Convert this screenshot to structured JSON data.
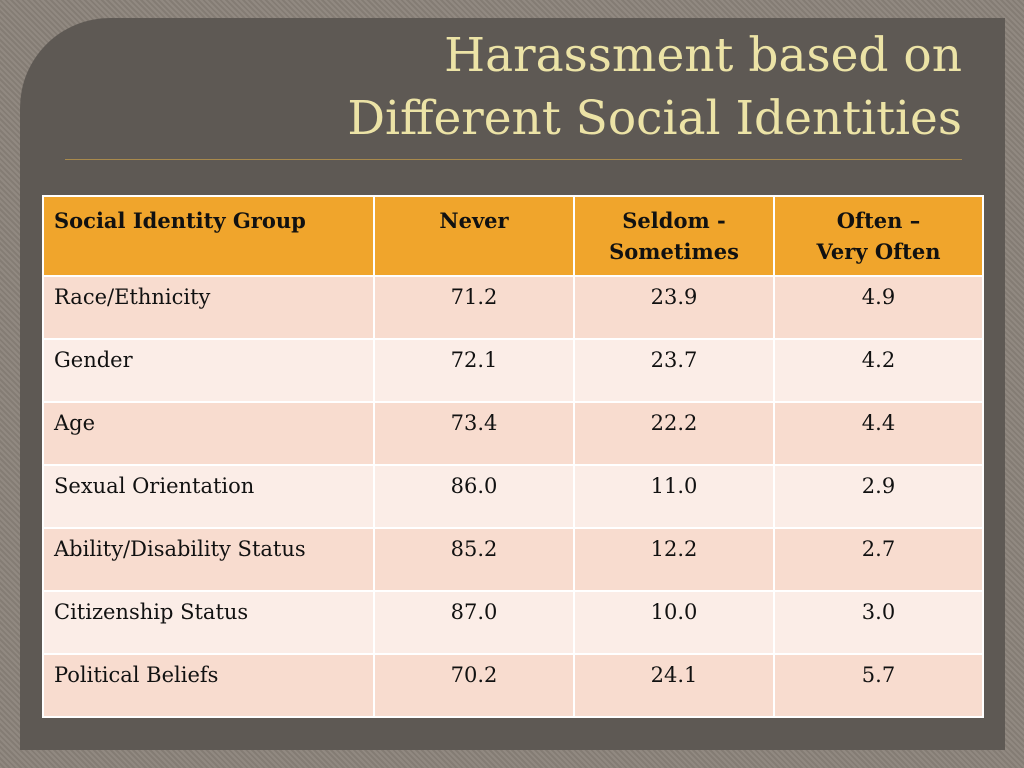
{
  "header": {
    "title_lines": [
      "Harassment based on",
      "Different Social Identities"
    ]
  },
  "table": {
    "columns": [
      [
        "Social Identity Group"
      ],
      [
        "Never"
      ],
      [
        "Seldom -",
        "Sometimes"
      ],
      [
        "Often –",
        "Very Often"
      ]
    ],
    "rows": [
      [
        "Race/Ethnicity",
        "71.2",
        "23.9",
        "4.9"
      ],
      [
        "Gender",
        "72.1",
        "23.7",
        "4.2"
      ],
      [
        "Age",
        "73.4",
        "22.2",
        "4.4"
      ],
      [
        "Sexual Orientation",
        "86.0",
        "11.0",
        "2.9"
      ],
      [
        "Ability/Disability Status",
        "85.2",
        "12.2",
        "2.7"
      ],
      [
        "Citizenship Status",
        "87.0",
        "10.0",
        "3.0"
      ],
      [
        "Political Beliefs",
        "70.2",
        "24.1",
        "5.7"
      ]
    ]
  }
}
